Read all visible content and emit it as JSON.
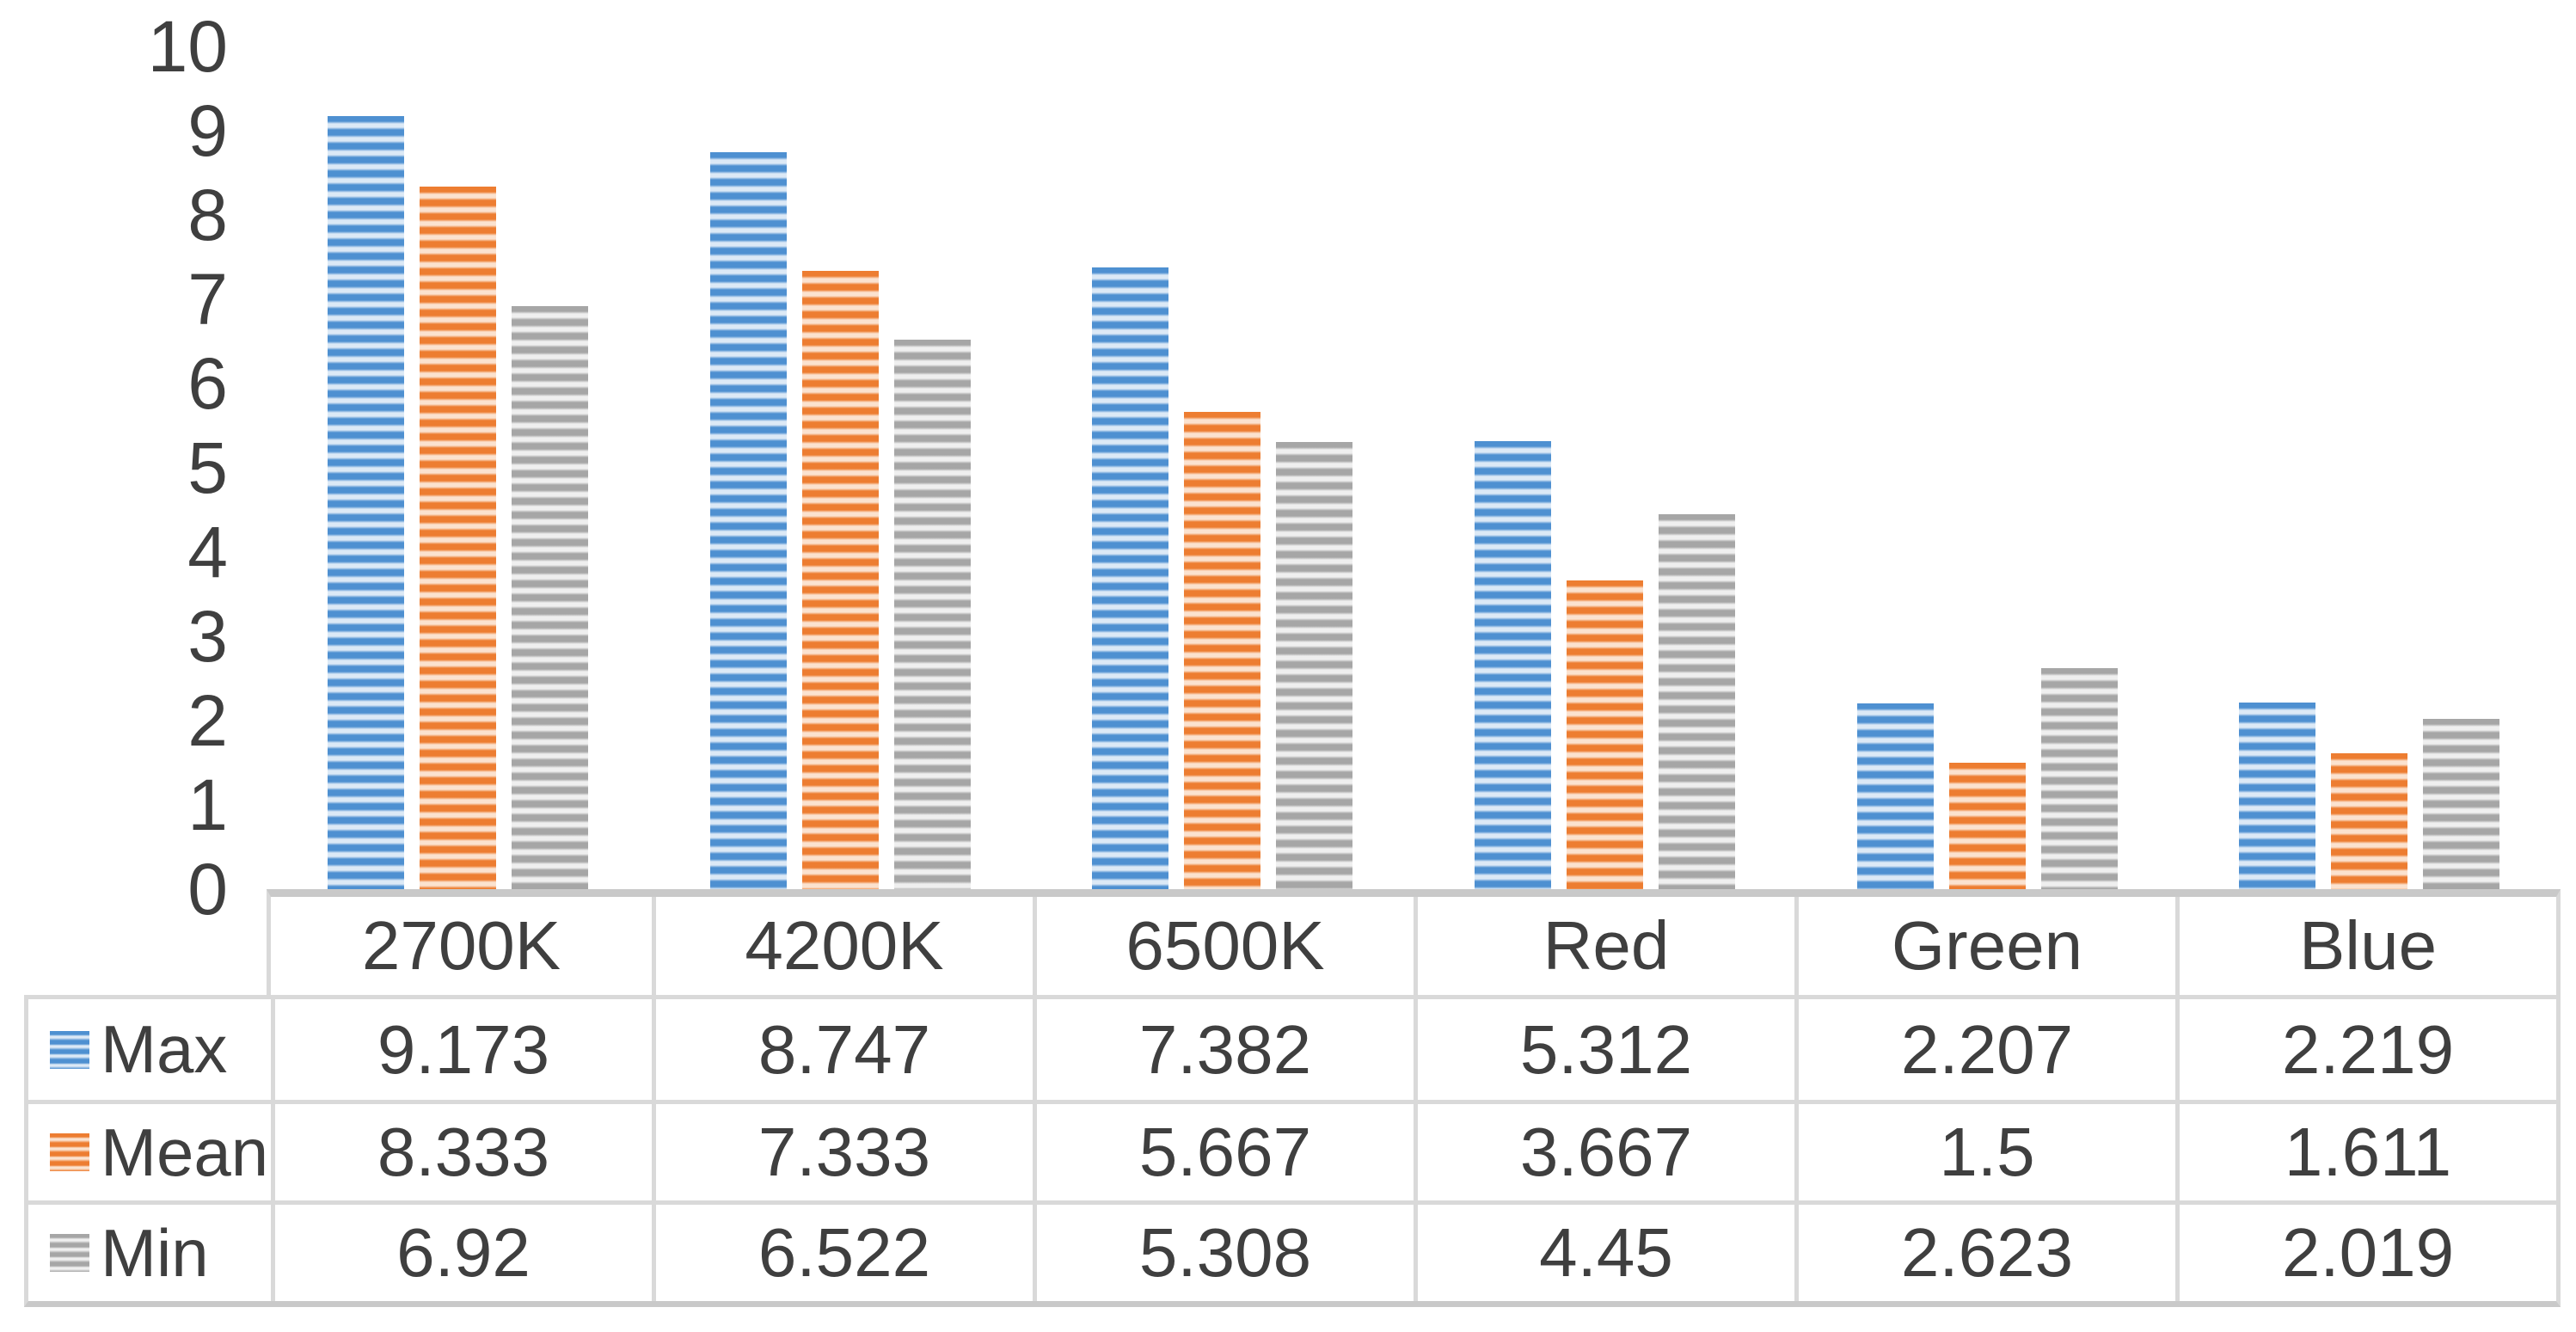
{
  "chart_data": {
    "type": "bar",
    "title": "",
    "xlabel": "",
    "ylabel": "",
    "categories": [
      "2700K",
      "4200K",
      "6500K",
      "Red",
      "Green",
      "Blue"
    ],
    "series": [
      {
        "name": "Max",
        "color": "#4e90d1",
        "stripe_light": "#dce9f6",
        "values": [
          9.173,
          8.747,
          7.382,
          5.312,
          2.207,
          2.219
        ]
      },
      {
        "name": "Mean",
        "color": "#ed7d31",
        "stripe_light": "#fbe2cf",
        "values": [
          8.333,
          7.333,
          5.667,
          3.667,
          1.5,
          1.611
        ]
      },
      {
        "name": "Min",
        "color": "#a6a6a6",
        "stripe_light": "#efefef",
        "values": [
          6.92,
          6.522,
          5.308,
          4.45,
          2.623,
          2.019
        ]
      }
    ],
    "ylim": [
      0,
      10
    ],
    "yticks": [
      10,
      9,
      8,
      7,
      6,
      5,
      4,
      3,
      2,
      1,
      0
    ],
    "grid": false,
    "legend_position": "table-rows-left",
    "bar_pattern": "horizontal-stripes"
  },
  "data_table": {
    "column_headers": [
      "2700K",
      "4200K",
      "6500K",
      "Red",
      "Green",
      "Blue"
    ],
    "rows": [
      {
        "legend": "Max",
        "values": [
          "9.173",
          "8.747",
          "7.382",
          "5.312",
          "2.207",
          "2.219"
        ]
      },
      {
        "legend": "Mean",
        "values": [
          "8.333",
          "7.333",
          "5.667",
          "3.667",
          "1.5",
          "1.611"
        ]
      },
      {
        "legend": "Min",
        "values": [
          "6.92",
          "6.522",
          "5.308",
          "4.45",
          "2.623",
          "2.019"
        ]
      }
    ]
  },
  "colors": {
    "background": "#ffffff",
    "text": "#3f3f3f",
    "table_border": "#d9d9d9",
    "table_border_dark": "#c9c9c9"
  }
}
